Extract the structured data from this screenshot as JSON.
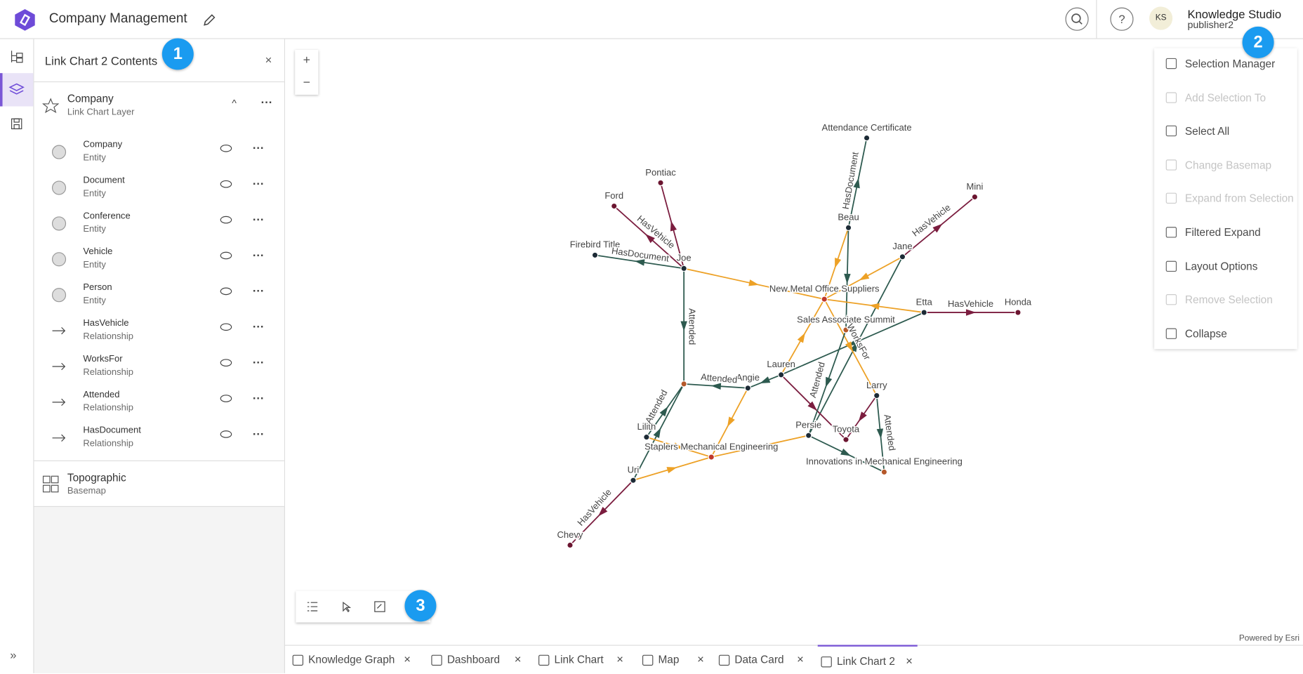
{
  "header": {
    "title": "Company Management",
    "user_initials": "KS",
    "user_name": "Knowledge Studio",
    "user_role": "publisher2"
  },
  "contents_panel": {
    "title": "Link Chart 2 Contents",
    "layer": {
      "name": "Company",
      "type": "Link Chart Layer"
    },
    "sublayers": [
      {
        "name": "Company",
        "type": "Entity"
      },
      {
        "name": "Document",
        "type": "Entity"
      },
      {
        "name": "Conference",
        "type": "Entity"
      },
      {
        "name": "Vehicle",
        "type": "Entity"
      },
      {
        "name": "Person",
        "type": "Entity"
      },
      {
        "name": "HasVehicle",
        "type": "Relationship"
      },
      {
        "name": "WorksFor",
        "type": "Relationship"
      },
      {
        "name": "Attended",
        "type": "Relationship"
      },
      {
        "name": "HasDocument",
        "type": "Relationship"
      }
    ],
    "basemap": {
      "name": "Topographic",
      "type": "Basemap"
    }
  },
  "callouts": [
    "1",
    "2",
    "3"
  ],
  "zoom_controls": [
    "+",
    "−"
  ],
  "graph": {
    "nodes": [
      "Attendance Certificate",
      "Pontiac",
      "Ford",
      "Firebird Title",
      "Joe",
      "Beau",
      "Mini",
      "Jane",
      "New Metal Office Suppliers",
      "Etta",
      "Honda",
      "Sales Associate Summit",
      "Lauren",
      "Angie",
      "Larry",
      "Lilith",
      "Persie",
      "Toyota",
      "Staplers Mechanical Engineering",
      "Innovations in Mechanical Engineering",
      "Uri",
      "Chevy"
    ],
    "edge_labels": [
      "HasVehicle",
      "HasDocument",
      "Attended",
      "HasDocument",
      "HasVehicle",
      "HasVehicle",
      "WorksFor",
      "Attended",
      "Attended",
      "Attended",
      "HasVehicle",
      "Attended"
    ]
  },
  "menu": {
    "items": [
      {
        "label": "Selection Manager",
        "enabled": true
      },
      {
        "label": "Add Selection To",
        "enabled": false
      },
      {
        "label": "Select All",
        "enabled": true
      },
      {
        "label": "Change Basemap",
        "enabled": false
      },
      {
        "label": "Expand from Selection",
        "enabled": false
      },
      {
        "label": "Filtered Expand",
        "enabled": true
      },
      {
        "label": "Layout Options",
        "enabled": true
      },
      {
        "label": "Remove Selection",
        "enabled": false
      },
      {
        "label": "Collapse",
        "enabled": true
      }
    ]
  },
  "tabs": [
    {
      "label": "Knowledge Graph",
      "active": false
    },
    {
      "label": "Dashboard",
      "active": false
    },
    {
      "label": "Link Chart",
      "active": false
    },
    {
      "label": "Map",
      "active": false
    },
    {
      "label": "Data Card",
      "active": false
    },
    {
      "label": "Link Chart 2",
      "active": true
    }
  ],
  "footer": "Powered by Esri"
}
